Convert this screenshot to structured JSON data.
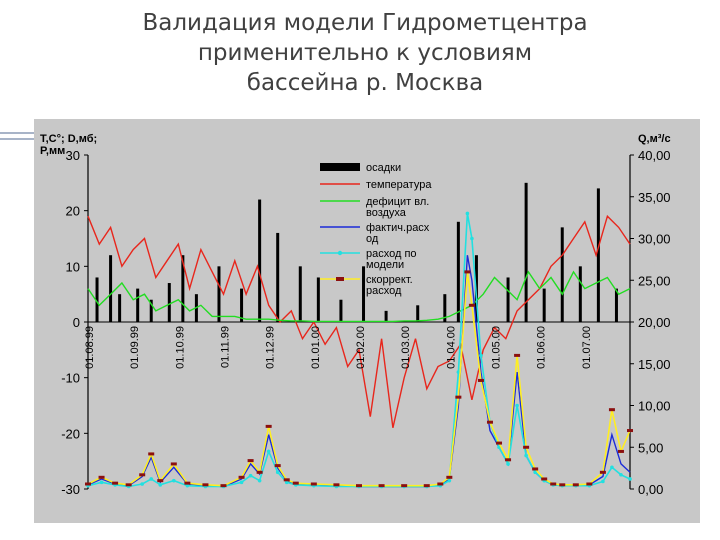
{
  "title_lines": [
    "Валидация модели Гидрометцентра",
    "применительно к условиям",
    "бассейна р. Москва"
  ],
  "chart_data": {
    "type": "line",
    "left_axis": {
      "label_lines": [
        "Т,С°; D,мб;",
        "P,мм"
      ],
      "ticks": [
        "30",
        "20",
        "10",
        "0",
        "-10",
        "-20",
        "-30"
      ],
      "tick_values": [
        30,
        20,
        10,
        0,
        -10,
        -20,
        -30
      ],
      "ylim": [
        -30,
        30
      ]
    },
    "right_axis": {
      "label": "Q,м³/с",
      "ticks": [
        "40,00",
        "35,00",
        "30,00",
        "25,00",
        "20,00",
        "15,00",
        "10,00",
        "5,00",
        "0,00"
      ],
      "tick_values": [
        40,
        35,
        30,
        25,
        20,
        15,
        10,
        5,
        0
      ],
      "ylim": [
        0,
        40
      ]
    },
    "x_dates": [
      "01.08.99",
      "01.09.99",
      "01.10.99",
      "01.11.99",
      "01.12.99",
      "01.01.00",
      "01.02.00",
      "01.03.00",
      "01.04.00",
      "01.05.00",
      "01.06.00",
      "01.07.00"
    ],
    "legend": [
      "осадки",
      "температура",
      "дефицит вл. воздуха",
      "фактич.расход",
      "расход по модели",
      "скоррект. расход"
    ],
    "legend_lines": [
      [
        "осадки"
      ],
      [
        "температура"
      ],
      [
        "дефицит вл.",
        "воздуха"
      ],
      [
        "фактич.расх",
        "од"
      ],
      [
        "расход по",
        "модели"
      ],
      [
        "скоррект.",
        "расход"
      ]
    ],
    "colors": {
      "precip": "#000000",
      "temperature": "#e8261c",
      "deficit": "#22dd22",
      "observed": "#1a2bd8",
      "model": "#22e0e0",
      "corrected": "#ffee22",
      "corrected_marker": "#8b1010",
      "background": "#c8c8c8"
    },
    "series": [
      {
        "name": "температура",
        "axis": "left",
        "x": [
          0,
          0.25,
          0.5,
          0.75,
          1,
          1.25,
          1.5,
          1.75,
          2,
          2.25,
          2.5,
          2.75,
          3,
          3.25,
          3.5,
          3.75,
          4,
          4.25,
          4.5,
          4.75,
          5,
          5.25,
          5.5,
          5.75,
          6,
          6.25,
          6.5,
          6.75,
          7,
          7.25,
          7.5,
          7.75,
          8,
          8.25,
          8.5,
          8.75,
          9,
          9.25,
          9.5,
          9.75,
          10,
          10.25,
          10.5,
          10.75,
          11,
          11.25,
          11.5,
          11.75,
          12
        ],
        "values": [
          19,
          14,
          17,
          10,
          13,
          15,
          8,
          11,
          14,
          6,
          13,
          9,
          5,
          11,
          5,
          10,
          3,
          0,
          2,
          -3,
          0,
          -4,
          -1,
          -8,
          -5,
          -17,
          -3,
          -19,
          -10,
          -3,
          -12,
          -8,
          -7,
          -4,
          -14,
          -5,
          -1,
          -3,
          2,
          4,
          6,
          10,
          12,
          15,
          18,
          12,
          19,
          17,
          14
        ],
        "style": "line"
      },
      {
        "name": "дефицит вл. воздуха",
        "axis": "left",
        "x": [
          0,
          0.25,
          0.5,
          0.75,
          1,
          1.25,
          1.5,
          1.75,
          2,
          2.25,
          2.5,
          2.75,
          3,
          3.25,
          3.5,
          3.75,
          4,
          4.25,
          4.5,
          4.75,
          5,
          5.25,
          5.5,
          5.75,
          6,
          6.25,
          6.5,
          6.75,
          7,
          7.25,
          7.5,
          7.75,
          8,
          8.25,
          8.5,
          8.75,
          9,
          9.25,
          9.5,
          9.75,
          10,
          10.25,
          10.5,
          10.75,
          11,
          11.25,
          11.5,
          11.75,
          12
        ],
        "values": [
          6,
          3,
          5,
          7,
          4,
          5,
          2,
          3,
          4,
          2,
          3,
          1,
          1,
          1,
          0.5,
          0.5,
          0.5,
          0.3,
          0.2,
          0.2,
          0.1,
          0.1,
          0.1,
          0.1,
          0.1,
          0.1,
          0.1,
          0.1,
          0.2,
          0.2,
          0.3,
          0.5,
          1,
          2,
          3,
          5,
          8,
          6,
          4,
          9,
          6,
          8,
          5,
          9,
          6,
          7,
          8,
          5,
          6
        ],
        "style": "line"
      },
      {
        "name": "осадки",
        "axis": "left",
        "x": [
          0.2,
          0.5,
          0.7,
          1.1,
          1.4,
          1.8,
          2.1,
          2.4,
          2.9,
          3.4,
          3.8,
          4.2,
          4.7,
          5.1,
          5.6,
          6.1,
          6.6,
          7.3,
          7.9,
          8.2,
          8.6,
          9.3,
          9.7,
          10.1,
          10.5,
          10.9,
          11.3,
          11.7
        ],
        "values": [
          8,
          12,
          5,
          6,
          4,
          7,
          12,
          5,
          10,
          6,
          22,
          16,
          10,
          8,
          4,
          10,
          2,
          3,
          5,
          18,
          12,
          8,
          25,
          6,
          17,
          10,
          24,
          6
        ],
        "style": "bar"
      },
      {
        "name": "фактич.расход",
        "axis": "right",
        "x": [
          0,
          0.3,
          0.6,
          0.9,
          1.2,
          1.4,
          1.6,
          1.9,
          2.2,
          2.6,
          3,
          3.4,
          3.6,
          3.8,
          4,
          4.2,
          4.4,
          4.6,
          5,
          5.5,
          6,
          6.5,
          7,
          7.5,
          7.8,
          8,
          8.2,
          8.4,
          8.5,
          8.7,
          8.9,
          9.1,
          9.3,
          9.5,
          9.7,
          9.9,
          10.1,
          10.3,
          10.5,
          10.8,
          11.1,
          11.4,
          11.6,
          11.8,
          12
        ],
        "values": [
          0.5,
          1.2,
          0.6,
          0.4,
          1.5,
          3.8,
          0.8,
          2.6,
          0.6,
          0.4,
          0.3,
          1.2,
          3.0,
          1.8,
          6.5,
          2.5,
          1.0,
          0.6,
          0.5,
          0.4,
          0.3,
          0.3,
          0.3,
          0.3,
          0.5,
          1.2,
          10,
          28,
          25,
          14,
          7,
          5,
          3,
          14,
          4,
          2,
          1,
          0.5,
          0.4,
          0.4,
          0.5,
          1.5,
          6.5,
          3,
          2
        ],
        "style": "line"
      },
      {
        "name": "расход по модели",
        "axis": "right",
        "x": [
          0,
          0.3,
          0.6,
          0.9,
          1.2,
          1.4,
          1.6,
          1.9,
          2.2,
          2.6,
          3,
          3.4,
          3.6,
          3.8,
          4,
          4.2,
          4.4,
          4.6,
          5,
          5.5,
          6,
          6.5,
          7,
          7.5,
          7.8,
          8,
          8.2,
          8.4,
          8.5,
          8.7,
          8.9,
          9.1,
          9.3,
          9.5,
          9.7,
          9.9,
          10.1,
          10.3,
          10.5,
          10.8,
          11.1,
          11.4,
          11.6,
          11.8,
          12
        ],
        "values": [
          0.4,
          0.8,
          0.5,
          0.3,
          0.6,
          1.2,
          0.5,
          1.0,
          0.4,
          0.3,
          0.3,
          0.8,
          1.6,
          1.0,
          4.5,
          2.0,
          0.8,
          0.5,
          0.4,
          0.3,
          0.3,
          0.3,
          0.3,
          0.3,
          0.4,
          1.0,
          14,
          33,
          30,
          16,
          8,
          5,
          3,
          10,
          4,
          2,
          1,
          0.5,
          0.4,
          0.4,
          0.4,
          0.9,
          2.6,
          1.7,
          1.2
        ],
        "style": "line-markers"
      },
      {
        "name": "скоррект. расход",
        "axis": "right",
        "x": [
          0,
          0.3,
          0.6,
          0.9,
          1.2,
          1.4,
          1.6,
          1.9,
          2.2,
          2.6,
          3,
          3.4,
          3.6,
          3.8,
          4,
          4.2,
          4.4,
          4.6,
          5,
          5.5,
          6,
          6.5,
          7,
          7.5,
          7.8,
          8,
          8.2,
          8.4,
          8.5,
          8.7,
          8.9,
          9.1,
          9.3,
          9.5,
          9.7,
          9.9,
          10.1,
          10.3,
          10.5,
          10.8,
          11.1,
          11.4,
          11.6,
          11.8,
          12
        ],
        "values": [
          0.6,
          1.4,
          0.7,
          0.5,
          1.7,
          4.2,
          1.0,
          3.0,
          0.7,
          0.5,
          0.4,
          1.4,
          3.4,
          2.0,
          7.5,
          2.8,
          1.1,
          0.7,
          0.6,
          0.5,
          0.4,
          0.4,
          0.4,
          0.4,
          0.6,
          1.4,
          11,
          26,
          22,
          13,
          8,
          5.5,
          3.5,
          16,
          5,
          2.4,
          1.2,
          0.6,
          0.5,
          0.5,
          0.6,
          2.0,
          9.5,
          4.5,
          7
        ],
        "style": "line-markers"
      }
    ]
  }
}
